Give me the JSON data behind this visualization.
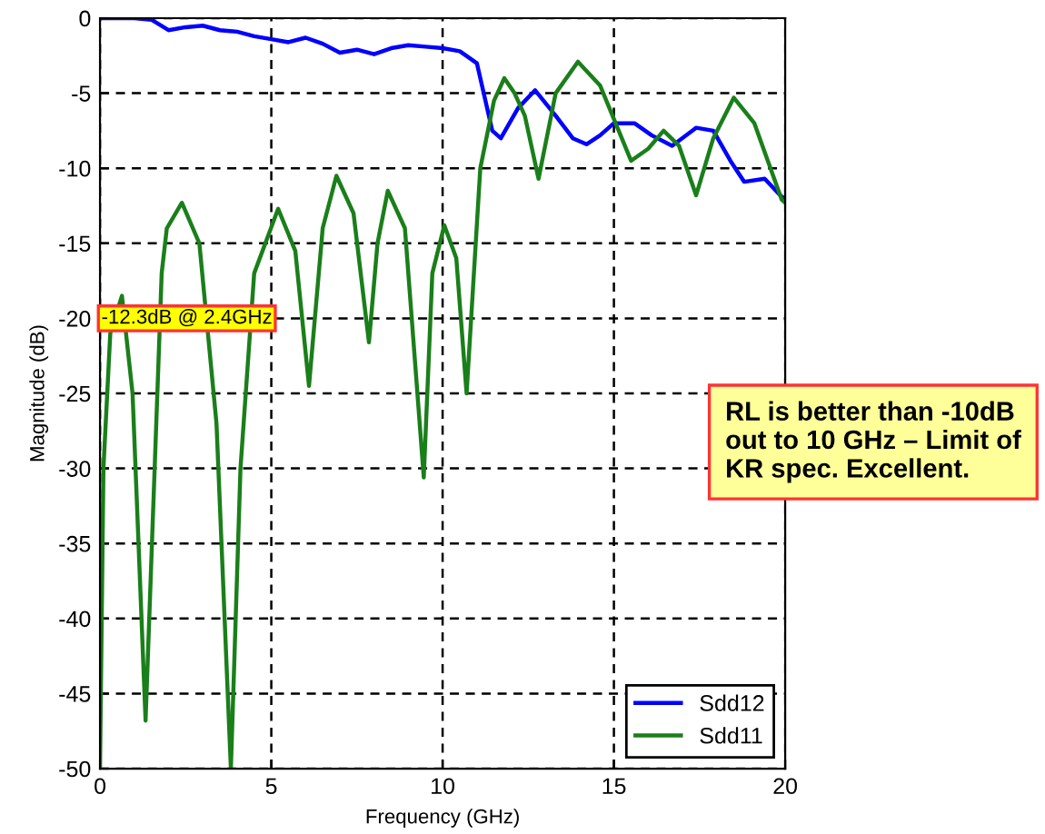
{
  "chart_data": {
    "type": "line",
    "xlabel": "Frequency (GHz)",
    "ylabel": "Magnitude (dB)",
    "xlim": [
      0,
      20
    ],
    "ylim": [
      -50,
      0
    ],
    "xticks": [
      0,
      5,
      10,
      15,
      20
    ],
    "yticks": [
      0,
      -5,
      -10,
      -15,
      -20,
      -25,
      -30,
      -35,
      -40,
      -45,
      -50
    ],
    "grid": true,
    "legend": "bottom right",
    "line_style": "solid",
    "marker": "none",
    "series": [
      {
        "name": "Sdd12",
        "color": "#0000ff",
        "x": [
          0,
          1,
          1.5,
          2,
          2.5,
          3,
          3.5,
          4,
          4.5,
          5,
          5.5,
          6,
          6.5,
          7,
          7.5,
          8,
          8.5,
          9,
          9.5,
          10,
          10.5,
          11,
          11.2,
          11.45,
          11.7,
          12.2,
          12.7,
          13.3,
          13.8,
          14.2,
          14.6,
          15,
          15.6,
          16.1,
          16.7,
          17.4,
          17.9,
          18.4,
          18.8,
          19.4,
          19.9,
          20
        ],
        "values": [
          0,
          0,
          -0.1,
          -0.8,
          -0.6,
          -0.5,
          -0.8,
          -0.9,
          -1.2,
          -1.4,
          -1.6,
          -1.3,
          -1.7,
          -2.3,
          -2.1,
          -2.4,
          -2,
          -1.8,
          -1.9,
          -2,
          -2.2,
          -3,
          -5,
          -7.5,
          -8,
          -6,
          -4.8,
          -6.5,
          -8,
          -8.4,
          -7.8,
          -7,
          -7,
          -7.8,
          -8.5,
          -7.3,
          -7.5,
          -9.5,
          -10.9,
          -10.7,
          -11.9,
          -12
        ]
      },
      {
        "name": "Sdd11",
        "color": "#1a7f1a",
        "x": [
          0,
          0.1,
          0.3,
          0.64,
          0.95,
          1.33,
          1.8,
          1.95,
          2.39,
          2.9,
          3.4,
          3.82,
          4.1,
          4.5,
          5.2,
          5.7,
          6.1,
          6.5,
          6.9,
          7.4,
          7.85,
          8.1,
          8.4,
          8.9,
          9.45,
          9.7,
          10.05,
          10.4,
          10.7,
          11.1,
          11.5,
          11.8,
          12.1,
          12.4,
          12.8,
          13.3,
          13.95,
          14.6,
          15.5,
          16,
          16.45,
          16.9,
          17.4,
          17.9,
          18.5,
          19.1,
          19.9,
          20
        ],
        "values": [
          -50,
          -30,
          -21,
          -18.5,
          -25,
          -46.8,
          -17,
          -14,
          -12.3,
          -15,
          -27,
          -50,
          -30,
          -17,
          -12.7,
          -15.5,
          -24.5,
          -14,
          -10.5,
          -13,
          -21.6,
          -15,
          -11.5,
          -14,
          -30.6,
          -17,
          -13.8,
          -16,
          -25,
          -10,
          -5.5,
          -4,
          -5,
          -6.5,
          -10.7,
          -5,
          -2.9,
          -4.5,
          -9.5,
          -8.7,
          -7.5,
          -8.5,
          -11.8,
          -8,
          -5.3,
          -7,
          -12.1,
          -12.3
        ]
      }
    ],
    "annotations": [
      "-12.3dB @ 2.4GHz",
      "RL is better than -10dB\nout to 10 GHz – Limit of\nKR spec. Excellent."
    ]
  }
}
